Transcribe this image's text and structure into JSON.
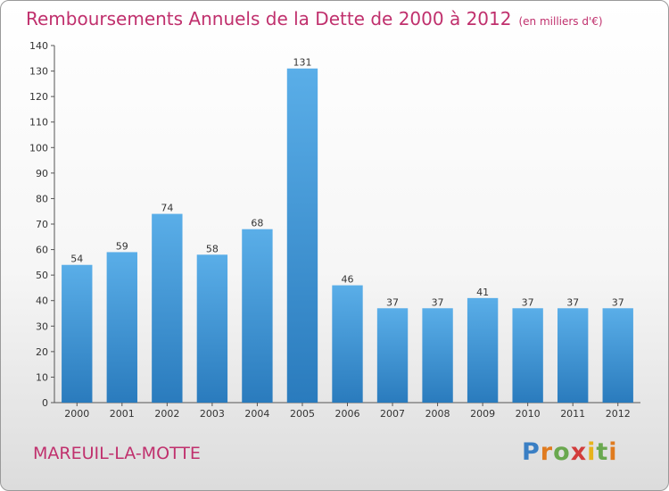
{
  "header": {
    "title": "Remboursements Annuels de la Dette de 2000 à 2012",
    "subtitle": "(en milliers d'€)"
  },
  "commune": "MAREUIL-LA-MOTTE",
  "logo": {
    "text": "Proxiti"
  },
  "colors": {
    "accent": "#c0306d",
    "bar_top": "#5aaee8",
    "bar_bottom": "#2a7bbd"
  },
  "chart_data": {
    "type": "bar",
    "title": "Remboursements Annuels de la Dette de 2000 à 2012",
    "subtitle": "(en milliers d'€)",
    "categories": [
      "2000",
      "2001",
      "2002",
      "2003",
      "2004",
      "2005",
      "2006",
      "2007",
      "2008",
      "2009",
      "2010",
      "2011",
      "2012"
    ],
    "values": [
      54,
      59,
      74,
      58,
      68,
      131,
      46,
      37,
      37,
      41,
      37,
      37,
      37
    ],
    "ylim": [
      0,
      140
    ],
    "yticks": [
      0,
      10,
      20,
      30,
      40,
      50,
      60,
      70,
      80,
      90,
      100,
      110,
      120,
      130,
      140
    ],
    "grid": false,
    "data_labels": true
  }
}
